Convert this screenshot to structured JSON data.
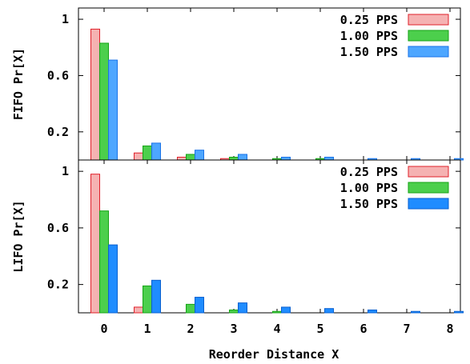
{
  "chart_data": [
    {
      "type": "bar",
      "panel": "top",
      "ylabel": "FIFO Pr[X]",
      "ylim": [
        0,
        1.08
      ],
      "yticks": [
        "0.2",
        "0.6",
        "1"
      ],
      "yticks_values": [
        0.2,
        0.6,
        1.0
      ],
      "categories": [
        "0",
        "1",
        "2",
        "3",
        "4",
        "5",
        "6",
        "7",
        "8"
      ],
      "series": [
        {
          "name": "0.25 PPS",
          "values": [
            0.93,
            0.05,
            0.02,
            0.01,
            0.0,
            0.0,
            0.0,
            0.0,
            0.0
          ]
        },
        {
          "name": "1.00 PPS",
          "values": [
            0.83,
            0.1,
            0.04,
            0.02,
            0.01,
            0.01,
            0.0,
            0.0,
            0.0
          ]
        },
        {
          "name": "1.50 PPS",
          "values": [
            0.71,
            0.12,
            0.07,
            0.04,
            0.02,
            0.02,
            0.01,
            0.01,
            0.01
          ]
        }
      ],
      "legend": "top-right"
    },
    {
      "type": "bar",
      "panel": "bottom",
      "ylabel": "LIFO Pr[X]",
      "xlabel": "Reorder Distance X",
      "ylim": [
        0,
        1.08
      ],
      "yticks": [
        "0.2",
        "0.6",
        "1"
      ],
      "yticks_values": [
        0.2,
        0.6,
        1.0
      ],
      "categories": [
        "0",
        "1",
        "2",
        "3",
        "4",
        "5",
        "6",
        "7",
        "8"
      ],
      "series": [
        {
          "name": "0.25 PPS",
          "values": [
            0.98,
            0.04,
            0.0,
            0.0,
            0.0,
            0.0,
            0.0,
            0.0,
            0.0
          ]
        },
        {
          "name": "1.00 PPS",
          "values": [
            0.72,
            0.19,
            0.06,
            0.02,
            0.01,
            0.0,
            0.0,
            0.0,
            0.0
          ]
        },
        {
          "name": "1.50 PPS",
          "values": [
            0.48,
            0.23,
            0.11,
            0.07,
            0.04,
            0.03,
            0.02,
            0.01,
            0.01
          ]
        }
      ],
      "legend": "top-right"
    }
  ],
  "colors": {
    "0.25 PPS": {
      "fill": "#f5b2b2",
      "stroke": "#e0202a"
    },
    "1.00 PPS": {
      "fill": "#4ccf4c",
      "stroke": "#16a316"
    },
    "1.50 PPS top": {
      "fill": "#4da6ff",
      "stroke": "#1a73e8"
    },
    "1.50 PPS bottom": {
      "fill": "#1f8cff",
      "stroke": "#0a60d0"
    }
  }
}
